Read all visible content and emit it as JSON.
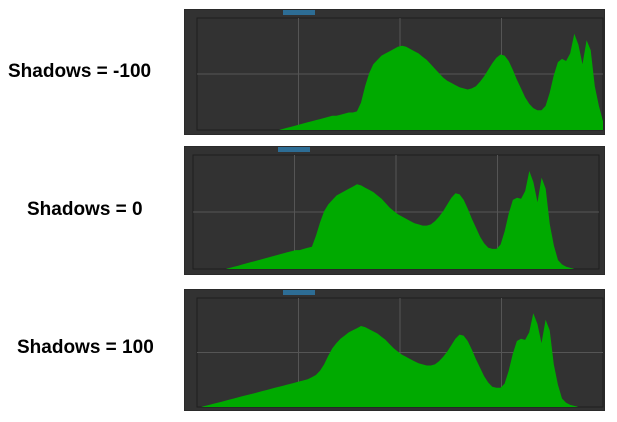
{
  "histograms": [
    {
      "label": "Shadows = -100",
      "counts": [
        0,
        0,
        0,
        0,
        0,
        0,
        0,
        0,
        0,
        0,
        0,
        0,
        0,
        0,
        0,
        0,
        0,
        0,
        0,
        0,
        0,
        1,
        2,
        3,
        4,
        5,
        6,
        7,
        8,
        9,
        10,
        11,
        12,
        13,
        13,
        14,
        15,
        16,
        16,
        17,
        25,
        40,
        52,
        60,
        64,
        68,
        70,
        72,
        74,
        76,
        77,
        76,
        74,
        72,
        70,
        67,
        64,
        60,
        56,
        52,
        48,
        45,
        43,
        41,
        39,
        38,
        37,
        38,
        40,
        44,
        49,
        55,
        61,
        66,
        69,
        68,
        63,
        55,
        46,
        38,
        30,
        24,
        20,
        18,
        18,
        22,
        34,
        50,
        62,
        65,
        63,
        70,
        88,
        78,
        60,
        82,
        73,
        40,
        22,
        8
      ],
      "handle_color": "#2d6d95",
      "fill_color": "#00aa00",
      "grid_color": "#555555",
      "background_color": "#323232"
    },
    {
      "label": "Shadows = 0",
      "counts": [
        0,
        0,
        0,
        0,
        0,
        0,
        0,
        0,
        0,
        1,
        2,
        3,
        4,
        5,
        6,
        7,
        8,
        9,
        10,
        11,
        12,
        13,
        14,
        15,
        16,
        17,
        17,
        18,
        19,
        20,
        30,
        42,
        52,
        58,
        62,
        66,
        68,
        70,
        72,
        74,
        76,
        75,
        73,
        71,
        69,
        66,
        63,
        59,
        55,
        52,
        49,
        47,
        45,
        43,
        41,
        40,
        39,
        39,
        40,
        43,
        47,
        52,
        58,
        64,
        68,
        67,
        62,
        54,
        45,
        37,
        29,
        23,
        19,
        18,
        18,
        22,
        34,
        50,
        62,
        64,
        63,
        70,
        88,
        78,
        60,
        82,
        72,
        40,
        21,
        8,
        4,
        2,
        1,
        0,
        0,
        0,
        0,
        0,
        0,
        0
      ],
      "handle_color": "#2d6d95",
      "fill_color": "#00aa00",
      "grid_color": "#555555",
      "background_color": "#323232"
    },
    {
      "label": "Shadows = 100",
      "counts": [
        0,
        0,
        1,
        2,
        3,
        4,
        5,
        6,
        7,
        8,
        9,
        10,
        11,
        12,
        13,
        14,
        15,
        16,
        17,
        18,
        19,
        20,
        21,
        22,
        23,
        24,
        25,
        26,
        28,
        30,
        34,
        40,
        48,
        55,
        60,
        64,
        67,
        70,
        72,
        74,
        76,
        75,
        73,
        71,
        69,
        66,
        63,
        59,
        55,
        52,
        49,
        47,
        45,
        43,
        41,
        40,
        39,
        39,
        40,
        43,
        47,
        52,
        58,
        64,
        68,
        67,
        62,
        54,
        45,
        37,
        29,
        23,
        19,
        18,
        18,
        22,
        34,
        50,
        62,
        64,
        63,
        70,
        88,
        78,
        60,
        82,
        72,
        40,
        21,
        8,
        4,
        2,
        1,
        0,
        0,
        0,
        0,
        0,
        0,
        0
      ],
      "handle_color": "#2d6d95",
      "fill_color": "#00aa00",
      "grid_color": "#555555",
      "background_color": "#323232"
    }
  ]
}
